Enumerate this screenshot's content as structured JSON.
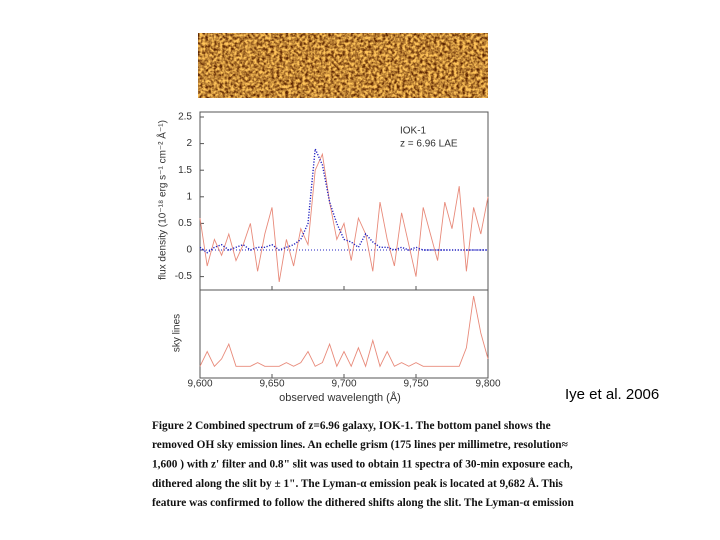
{
  "chart_data": [
    {
      "type": "line",
      "ylabel": "flux density (10⁻¹⁸ erg s⁻¹ cm⁻² Å⁻¹)",
      "xlabel": "observed wavelength (Å)",
      "annotations": [
        "IOK-1",
        "z = 6.96 LAE"
      ],
      "x": [
        9600,
        9605,
        9610,
        9615,
        9620,
        9625,
        9630,
        9635,
        9640,
        9645,
        9650,
        9655,
        9660,
        9665,
        9670,
        9675,
        9680,
        9685,
        9690,
        9695,
        9700,
        9705,
        9710,
        9715,
        9720,
        9725,
        9730,
        9735,
        9740,
        9745,
        9750,
        9755,
        9760,
        9765,
        9770,
        9775,
        9780,
        9785,
        9790,
        9795,
        9800
      ],
      "xlim": [
        9600,
        9800
      ],
      "xticks": [
        {
          "value": 9600,
          "label": "9,600"
        },
        {
          "value": 9650,
          "label": "9,650"
        },
        {
          "value": 9700,
          "label": "9,700"
        },
        {
          "value": 9750,
          "label": "9,750"
        },
        {
          "value": 9800,
          "label": "9,800"
        }
      ],
      "ylim": [
        -0.75,
        2.5
      ],
      "yticks": [
        2.5,
        2,
        1.5,
        1,
        0.5,
        0,
        -0.5
      ],
      "series": [
        {
          "color": "#e88a7a",
          "style": "solid",
          "values": [
            0.6,
            -0.3,
            0.2,
            -0.1,
            0.3,
            -0.2,
            0.1,
            0.5,
            -0.4,
            0.3,
            0.8,
            -0.6,
            0.2,
            -0.3,
            0.4,
            0.1,
            1.5,
            1.8,
            0.9,
            0.2,
            0.5,
            -0.2,
            0.6,
            0.3,
            -0.4,
            0.9,
            0.2,
            -0.3,
            0.7,
            0.1,
            -0.5,
            0.8,
            0.3,
            -0.2,
            0.9,
            0.4,
            1.2,
            -0.4,
            0.8,
            0.3,
            1.0
          ]
        },
        {
          "color": "#2020c0",
          "style": "dotted",
          "values": [
            0.05,
            -0.05,
            0.05,
            0.1,
            0,
            0.05,
            0.1,
            0,
            0.05,
            0.05,
            0.1,
            0,
            0.05,
            0.1,
            0.2,
            0.5,
            1.9,
            1.6,
            0.9,
            0.5,
            0.2,
            0.15,
            0.05,
            0.3,
            0.15,
            0.05,
            0.05,
            0,
            0.05,
            0,
            0.05,
            0,
            0,
            0,
            0,
            0,
            0,
            0,
            0,
            0,
            0
          ]
        }
      ]
    },
    {
      "type": "line",
      "ylabel": "sky lines",
      "ylim": [
        0,
        1
      ],
      "series": [
        {
          "color": "#e88a7a",
          "style": "solid",
          "values": [
            0.05,
            0.25,
            0.05,
            0.15,
            0.35,
            0.05,
            0.05,
            0.05,
            0.1,
            0.05,
            0.05,
            0.05,
            0.1,
            0.05,
            0.1,
            0.25,
            0.05,
            0.1,
            0.35,
            0.05,
            0.25,
            0.05,
            0.3,
            0.05,
            0.4,
            0.05,
            0.25,
            0.05,
            0.1,
            0.05,
            0.1,
            0.05,
            0.05,
            0.05,
            0.05,
            0.05,
            0.05,
            0.3,
            1.0,
            0.5,
            0.15
          ]
        }
      ]
    }
  ],
  "caption": {
    "title": "Figure 2 Combined spectrum of z=6.96 galaxy, IOK-1.",
    "lines": [
      " The bottom panel shows the",
      "removed OH sky emission lines. An echelle grism (175 lines per millimetre, resolution≈",
      "1,600 ) with z' filter and 0.8\" slit was used to obtain 11 spectra of 30-min exposure each,",
      "dithered along the slit by ± 1\". The Lyman-α emission peak is located at 9,682 Å. This",
      "feature was confirmed to follow the dithered shifts  along the slit. The Lyman-α emission"
    ]
  },
  "credit": "Iye et al. 2006"
}
